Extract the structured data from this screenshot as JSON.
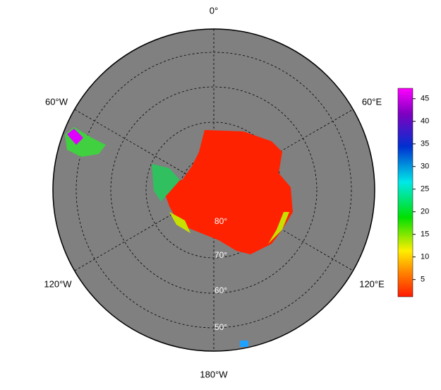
{
  "map": {
    "longitude_labels": [
      "0°",
      "60°E",
      "120°E",
      "180°W",
      "120°W",
      "60°W"
    ],
    "latitude_labels": [
      "80°",
      "70°",
      "60°",
      "50°"
    ]
  },
  "colorbar": {
    "range": [
      1.2,
      47.3
    ],
    "ticks": [
      5,
      10,
      15,
      20,
      25,
      30,
      35,
      40,
      45
    ]
  }
}
